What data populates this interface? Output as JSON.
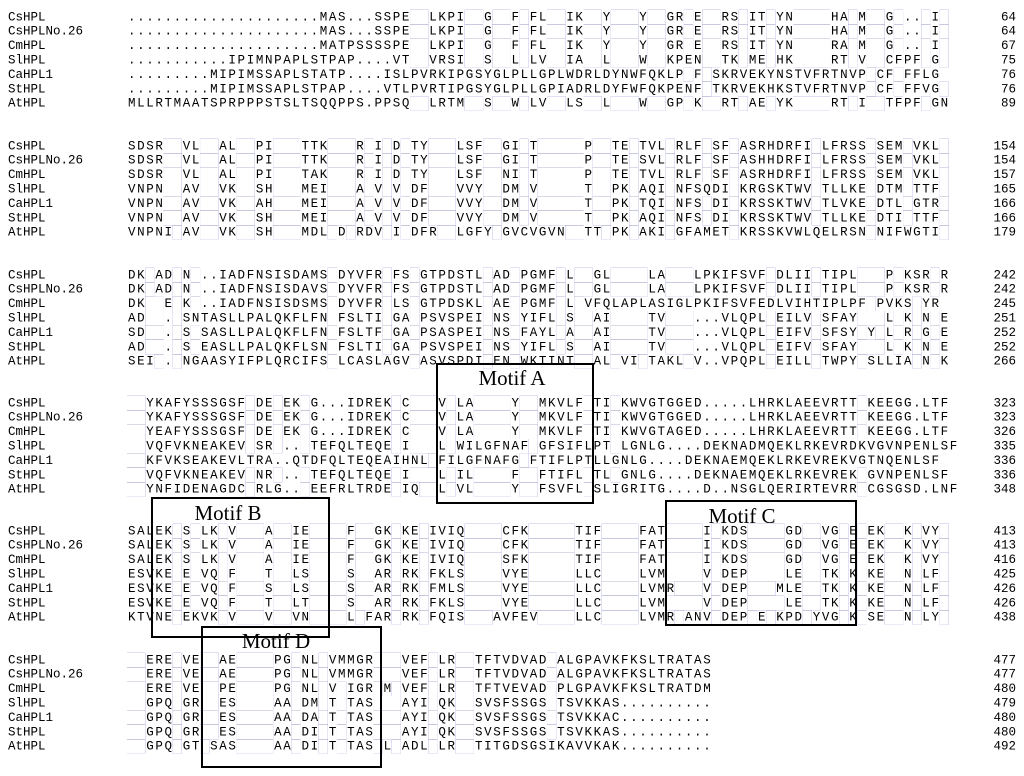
{
  "blocks": [
    {
      "rows": [
        {
          "name": "CsHPL",
          "sequence": ".....................MAS...SSPELPLKPIPGGYGFPFLGPIKDRYDYFYFQGRDEFFRSRITKYNSTVFHANMPPGP..FIS",
          "end": "64"
        },
        {
          "name": "CsHPLNo.26",
          "sequence": ".....................MAS...SSPELPLKPIPGGYGFPFLGPIKDRYDYFYFQGRDEFFRSRITKYNSTVFHANMPPGP..FIS",
          "end": "64"
        },
        {
          "name": "CmHPL",
          "sequence": ".....................MATPSSSSPELPLKPIPGGYGFPFLGPIKDRYDYFYFQGRDEFFRSRITKYNSTVFRANMPPGP..FIS",
          "end": "67"
        },
        {
          "name": "SlHPL",
          "sequence": "...........IPIMNPAPLSTPAP....VTLPVRSIPGSYGLPLVGPIADRLDYFWFQKPENFFTKRMEKHKSTVFRTNVPPCFPFFGS",
          "end": "75"
        },
        {
          "name": "CaHPL1",
          "sequence": ".........MIPIMSSAPLSTATP....ISLPVRKIPGSYGLPLLGPLWDRLDYNWFQKLPDFFSKRVEKYNSTVFRTNVPPCFPFFLG",
          "end": "76"
        },
        {
          "name": "StHPL",
          "sequence": ".........MIPIMSSAPLSTPAP....VTLPVRTIPGSYGLPLLGPIADRLDYFWFQKPENFFTKRVEKHKSTVFRTNVPPCFPFFVGS",
          "end": "76"
        },
        {
          "name": "AtHPL",
          "sequence": "MLLRTMAATSPRPPPSTSLTSQQPPS.PPSQLPLRTMPGSYGWPLVGPLSDRLDYFWFQGPDKFFRTRAEKYKSTVFRTNIPPTFPFFGN",
          "end": "89"
        }
      ]
    },
    {
      "rows": [
        {
          "name": "CsHPL",
          "sequence": "SDSRVVVLLDALSFPILFDTTKVEKRNILDGTYMPSLSFTGGIRTCAYLDPSETEHTVLKRLFLSFLASRHDRFIPLFRSSLSEMFVKLE",
          "end": "154"
        },
        {
          "name": "CsHPLNo.26",
          "sequence": "SDSRVVVLLDALSFPILFDTTKVEKRNILDGTYMPSLSFTGGIRTCAYLDPSETEHSVLKRLFLSFLASHHDRFIPLFRSSLSEMFVKLE",
          "end": "154"
        },
        {
          "name": "CmHPL",
          "sequence": "SDSRVVVLLDALSFPILFDTAKVEKRNILDGTYMPSLSFTGNIRTCAYLDPSETEHTVLKRLFLSFLASRHDRFIPLFRSSLSEMFVKLE",
          "end": "157"
        },
        {
          "name": "SlHPL",
          "sequence": "VNPNVVAVLDVKSFSHLFDMEIVEKANVLVGDFMPSVVYTGDMRVCAYLDTSEPKHAQIKNFSQDILKRGSKTWVPTLLKELDTMFTTFE",
          "end": "165"
        },
        {
          "name": "CaHPL1",
          "sequence": "VNPNVVAVLDVKSFAHLFDMEIVEKANVLVGDFMPSVVYTGDMRVCAYLDTSEPKHTQIKNFSLDILKRSSKTWVPTLVKELDTLFGTRE",
          "end": "166"
        },
        {
          "name": "StHPL",
          "sequence": "VNPNVVAVLDVKSFSHLFDMEIVEKANVLVGDFMPSVVYTGDMRVCAYLDTSEPKHAQIKNFSLDILKRSSKTWVPTLLKELDTIFTTFE",
          "end": "166"
        },
        {
          "name": "AtHPL",
          "sequence": "VNPNIVAVLDVKSFSHLFDMDLVDKRDVLIGDFRPSLGFYGGVCVGVNLDTTEPKHAKIKGFAMETLKRSSKVWLQELRSNLNIFWGTIE",
          "end": "179"
        }
      ]
    },
    {
      "rows": [
        {
          "name": "CsHPL",
          "sequence": "DKLADKNK..IADFNSISDAMSFDYVFRLFSDGTPDSTLAADGPGMFDLWLGLQLAPLASIGLPKIFSVFEDLIIHTIPLPFFPVKSRYR",
          "end": "242"
        },
        {
          "name": "CsHPLNo.26",
          "sequence": "DKLADKNK..IADFNSISDAVSFDYVFRLFSDGTPDSTLAADGPGMFDLWLGLQLAPLASIGLPKIFSVFEDLIIHTIPLPFFPVKSRYR",
          "end": "242"
        },
        {
          "name": "CmHPL",
          "sequence": "DKLSEKKK..IADFNSISDSMSFDYVFRLLSDGTPDSKLAAEGPGMFDLWVFQLAPLASIGLPKIFSVFEDLVIHTIPLPFFPVKSGYR",
          "end": "245"
        },
        {
          "name": "SlHPL",
          "sequence": "ADLS.KSNTASLLPALQKFLFNFFSLTILGADPSVSPEIANSGYIFLDSWLAIQLAPTVSIG...VLQPLEEILVHSFAYPFFLVKGNYE",
          "end": "251"
        },
        {
          "name": "CaHPL1",
          "sequence": "SDLS.KSKSASLLPALQKFLFNFFSLTFLGADPSASPEIANSGFAYLDAWLAIQLAPTVSIG...VLQPLEEIFVHSFSYPYFLVRGGYE",
          "end": "252"
        },
        {
          "name": "StHPL",
          "sequence": "ADLS.KSKEASLLPALQKFLSNFFSLTILGADPSVSPEIANSGYIFLDSWLAIQLAPTVSIG...VLQPLEEIFVHSFAYPFFLVKGNYE",
          "end": "252"
        },
        {
          "name": "AtHPL",
          "sequence": "SEIS.KNGAASYIFPLQRCIFSFLCASLAGVDASVSPDIAENGWKTINTWLALQVIPTAKLGV..VPQPLEEILLHTWPYPSLLIAGNYK",
          "end": "266"
        }
      ]
    },
    {
      "rows": [
        {
          "name": "CsHPL",
          "sequence": "KLYKAFYSSSGSFLDEAEKQG...IDREKACHNLVFLAGFNAYGGMKVLFPTILKWVGTGGED.....LHRKLAEEVRTTVKEEGG.LTF",
          "end": "323"
        },
        {
          "name": "CsHPLNo.26",
          "sequence": "KLYKAFYSSSGSFLDEAEKQG...IDREKACHNLVFLAGFNAYGGMKVLFPTILKWVGTGGED.....LHRKLAEEVRTTVKEEGG.LTF",
          "end": "323"
        },
        {
          "name": "CmHPL",
          "sequence": "KLYEAFYSSSGSFLDEAEKQG...IDREKACHNLVFLAGFNAYGGMKVLFPTILKWVGTAGED.....LHRKLAEEVRTTVKEEGG.LTF",
          "end": "326"
        },
        {
          "name": "SlHPL",
          "sequence": "KLVQFVKNEAKEVLSRA..QTEFQLTEQEAIHNLLFWILGFNAFGGFSIFLPTLLGNLG....DEKNADMQEKLRKEVRDKVGVNPENLSF",
          "end": "335"
        },
        {
          "name": "CaHPL1",
          "sequence": "KLKFVKSEAKEVLTRA..QTDFQLTEQEAIHNLLFILGFNAFGGFTIFLPTLLGNLG....DEKNAEMQEKLRKEVREKVGTNQENLSF",
          "end": "336"
        },
        {
          "name": "StHPL",
          "sequence": "KLVQFVKNEAKEVLNRA..QTEFQLTEQEAIHNLLFILGFNAFGGFTIFLPTLLGNLG....DEKNAEMQEKLRKEVREKVGVNPENLSF",
          "end": "336"
        },
        {
          "name": "AtHPL",
          "sequence": "KLYNFIDENAGDCLRLG..QEEFRLTRDEAIQNLLFVLGFNAYGGFSVFLPSLIGRITG....D..NSGLQERIRTEVRRVCGSGSD.LNF",
          "end": "348"
        }
      ]
    },
    {
      "rows": [
        {
          "name": "CsHPL",
          "sequence": "SALEKMSLLKSVVYEALRIEPPVPFQYGKAKEDIVIQSHDSCFKIKKGETIFGYQPFATKDPKIFKDSEKFVGDRFVGEEGEKLLKYVYW",
          "end": "413"
        },
        {
          "name": "CsHPLNo.26",
          "sequence": "SALEKMSLLKSVVYEALRIEPPVPFQYGKAKEDIVIQSHDSCFKIKKGETIFGYQPFATKDPKIFKDSEKFVGDRFVGEEGEKLLKYVYW",
          "end": "413"
        },
        {
          "name": "CmHPL",
          "sequence": "SALEKMSLLKSVVYEALRIEPPVPFQYGKAKEDIVIQSHDSSFKIKKGETIFGYQPFATKDPKIFKDSEKFVGDRFVGEEGEKLLKYVYW",
          "end": "416"
        },
        {
          "name": "SlHPL",
          "sequence": "ESVKEMELVQSFVYETLRLSPPVPSQYARARKDFKLSSHDSVYEIKKGELLCGYQPLVMKDPKVFDEPEKFVLERFTKEKGKELLNYLFW",
          "end": "425"
        },
        {
          "name": "CaHPL1",
          "sequence": "ESVKEMELVQSFVYESLRLSPPVPSQYARARKDFMLSSHDSVYEIKKGELLCGYQPLVMRDPKVFDEPEKFMLERFTKEKGKELLNYLFW",
          "end": "426"
        },
        {
          "name": "StHPL",
          "sequence": "ESVKEMELVQSFVYETLRLTPPVPSQYARARKDFKLSSHDSVYEIKKGELLCGYQPLVMKDPKVFDEPEKFVLERFTKEKGKELLNYLFW",
          "end": "426"
        },
        {
          "name": "AtHPL",
          "sequence": "KTVNEMEKVKSVVYEVLRVNPPVPLQFARARKDFQISSHDAVFEVKKGELLCGYQPLVMRDANVFDEPEEFKPDRYVGEKGSELLNYLYW",
          "end": "438"
        }
      ]
    },
    {
      "rows": [
        {
          "name": "CsHPL",
          "sequence": "SNERETVEPTAENKQCPGKNLVVMMGRIIVVEFFLRYDTFTVDVADLALGPAVKFKSLTRATAS",
          "end": "477"
        },
        {
          "name": "CsHPLNo.26",
          "sequence": "SNERETVEPTAENKQCPGKNLVVMMGRIIVVEFFLRYDTFTVDVADLALGPAVKFKSLTRATAS",
          "end": "477"
        },
        {
          "name": "CmHPL",
          "sequence": "SNERETVEPTPENKQCPGKNLVVLIGRIMVVEFFLRYDTFTVEVADLPLGPAVKFKSLTRATDM",
          "end": "480"
        },
        {
          "name": "SlHPL",
          "sequence": "SNGPQTGRPTESNKQCAAKDMVTLTASIIVAYIFQKYDSVSFSSGSLTSVKKAS..........",
          "end": "479"
        },
        {
          "name": "CaHPL1",
          "sequence": "SNGPQTGRPTESNKQCAAKDAVTLTASIIVAYIFQKYDSVSFSSGSLTSVKKAC..........",
          "end": "480"
        },
        {
          "name": "StHPL",
          "sequence": "SNGPQTGRPTESNKQCAAKDIVTLTASIIVAYIFQKYDSVSFSSGSLTSVKKAS..........",
          "end": "480"
        },
        {
          "name": "AtHPL",
          "sequence": "SNGPQTGTPSASNKQCAAKDIVTLTASILVADLFLRYDTITGDSGSIKAVVKAK..........",
          "end": "492"
        }
      ]
    }
  ],
  "motifs": [
    "Motif A",
    "Motif B",
    "Motif C",
    "Motif D"
  ]
}
